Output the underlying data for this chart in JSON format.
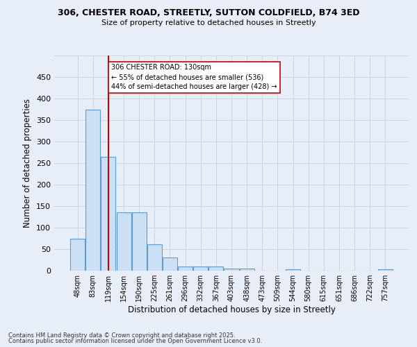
{
  "title1": "306, CHESTER ROAD, STREETLY, SUTTON COLDFIELD, B74 3ED",
  "title2": "Size of property relative to detached houses in Streetly",
  "xlabel": "Distribution of detached houses by size in Streetly",
  "ylabel": "Number of detached properties",
  "categories": [
    "48sqm",
    "83sqm",
    "119sqm",
    "154sqm",
    "190sqm",
    "225sqm",
    "261sqm",
    "296sqm",
    "332sqm",
    "367sqm",
    "403sqm",
    "438sqm",
    "473sqm",
    "509sqm",
    "544sqm",
    "580sqm",
    "615sqm",
    "651sqm",
    "686sqm",
    "722sqm",
    "757sqm"
  ],
  "values": [
    75,
    375,
    265,
    135,
    135,
    62,
    30,
    10,
    10,
    10,
    5,
    5,
    0,
    0,
    3,
    0,
    0,
    0,
    0,
    0,
    4
  ],
  "bar_color": "#cce0f5",
  "bar_edge_color": "#5b9bd5",
  "vline_x": 2,
  "vline_color": "#cc0000",
  "annotation_text": "306 CHESTER ROAD: 130sqm\n← 55% of detached houses are smaller (536)\n44% of semi-detached houses are larger (428) →",
  "annotation_box_color": "#ffffff",
  "annotation_box_edge": "#cc0000",
  "footer1": "Contains HM Land Registry data © Crown copyright and database right 2025.",
  "footer2": "Contains public sector information licensed under the Open Government Licence v3.0.",
  "bg_color": "#e8eef8",
  "grid_color": "#c8d0e0",
  "ylim": [
    0,
    500
  ],
  "yticks": [
    0,
    50,
    100,
    150,
    200,
    250,
    300,
    350,
    400,
    450,
    500
  ],
  "ytick_labels": [
    "0",
    "50",
    "100",
    "150",
    "200",
    "250",
    "300",
    "350",
    "400",
    "450",
    ""
  ]
}
